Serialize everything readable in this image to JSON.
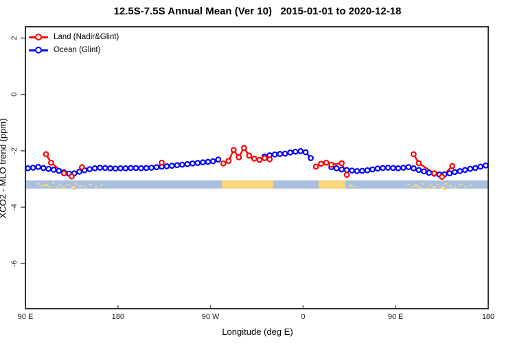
{
  "title": "12.5S-7.5S Annual Mean (Ver 10)   2015-01-01 to 2020-12-18",
  "legend": {
    "items": [
      {
        "label": "Land (Nadir&Glint)",
        "color": "#ff0000"
      },
      {
        "label": "Ocean (Glint)",
        "color": "#0000ff"
      }
    ],
    "position": "top-left"
  },
  "chart_data": {
    "type": "line",
    "title": "12.5S-7.5S Annual Mean (Ver 10)   2015-01-01 to 2020-12-18",
    "xlabel": "Longitude (deg E)",
    "ylabel": "XCO2 - MLO trend (ppm)",
    "grid": false,
    "legend_position": "top-left",
    "xlim": [
      90,
      540
    ],
    "ylim": [
      -7.6,
      2.4
    ],
    "x_ticks": [
      {
        "deg": 90,
        "label": "90 E"
      },
      {
        "deg": 180,
        "label": "180"
      },
      {
        "deg": 270,
        "label": "90 W"
      },
      {
        "deg": 360,
        "label": "0"
      },
      {
        "deg": 450,
        "label": "90 E"
      },
      {
        "deg": 540,
        "label": "180"
      }
    ],
    "y_ticks": [
      2,
      0,
      -2,
      -4,
      -6
    ],
    "series": [
      {
        "name": "Ocean (Glint)",
        "color": "#0000ff",
        "marker": "open-circle",
        "points": [
          [
            92.5,
            -2.62
          ],
          [
            97.5,
            -2.6
          ],
          [
            102.5,
            -2.57
          ],
          [
            107.5,
            -2.61
          ],
          [
            112.5,
            -2.64
          ],
          [
            117.5,
            -2.67
          ],
          [
            122.5,
            -2.71
          ],
          [
            127.5,
            -2.76
          ],
          [
            132.5,
            -2.81
          ],
          [
            137.5,
            -2.8
          ],
          [
            142.5,
            -2.74
          ],
          [
            147.5,
            -2.69
          ],
          [
            152.5,
            -2.65
          ],
          [
            157.5,
            -2.62
          ],
          [
            162.5,
            -2.6
          ],
          [
            167.5,
            -2.61
          ],
          [
            172.5,
            -2.62
          ],
          [
            177.5,
            -2.63
          ],
          [
            182.5,
            -2.62
          ],
          [
            187.5,
            -2.62
          ],
          [
            192.5,
            -2.61
          ],
          [
            197.5,
            -2.61
          ],
          [
            202.5,
            -2.62
          ],
          [
            207.5,
            -2.61
          ],
          [
            212.5,
            -2.6
          ],
          [
            217.5,
            -2.58
          ],
          [
            222.5,
            -2.56
          ],
          [
            227.5,
            -2.55
          ],
          [
            232.5,
            -2.53
          ],
          [
            237.5,
            -2.51
          ],
          [
            242.5,
            -2.49
          ],
          [
            247.5,
            -2.47
          ],
          [
            252.5,
            -2.45
          ],
          [
            257.5,
            -2.43
          ],
          [
            262.5,
            -2.41
          ],
          [
            267.5,
            -2.39
          ],
          [
            272.5,
            -2.37
          ],
          [
            277.5,
            -2.31
          ],
          [
            282.5,
            null
          ],
          [
            287.5,
            null
          ],
          [
            292.5,
            null
          ],
          [
            297.5,
            null
          ],
          [
            302.5,
            null
          ],
          [
            307.5,
            null
          ],
          [
            312.5,
            null
          ],
          [
            317.5,
            null
          ],
          [
            322.5,
            -2.2
          ],
          [
            327.5,
            -2.16
          ],
          [
            332.5,
            -2.13
          ],
          [
            337.5,
            -2.11
          ],
          [
            342.5,
            -2.1
          ],
          [
            347.5,
            -2.06
          ],
          [
            352.5,
            -2.03
          ],
          [
            357.5,
            -2.01
          ],
          [
            362.5,
            -2.05
          ],
          [
            367.5,
            -2.26
          ],
          [
            372.5,
            null
          ],
          [
            377.5,
            null
          ],
          [
            382.5,
            null
          ],
          [
            387.5,
            -2.58
          ],
          [
            392.5,
            -2.62
          ],
          [
            397.5,
            -2.66
          ],
          [
            402.5,
            -2.68
          ],
          [
            407.5,
            -2.7
          ],
          [
            412.5,
            -2.72
          ],
          [
            417.5,
            -2.71
          ],
          [
            422.5,
            -2.69
          ],
          [
            427.5,
            -2.66
          ],
          [
            432.5,
            -2.63
          ],
          [
            437.5,
            -2.61
          ],
          [
            442.5,
            -2.6
          ],
          [
            447.5,
            -2.61
          ],
          [
            452.5,
            -2.62
          ],
          [
            457.5,
            -2.6
          ],
          [
            462.5,
            -2.58
          ],
          [
            467.5,
            -2.62
          ],
          [
            472.5,
            -2.68
          ],
          [
            477.5,
            -2.73
          ],
          [
            482.5,
            -2.78
          ],
          [
            487.5,
            -2.81
          ],
          [
            492.5,
            -2.84
          ],
          [
            497.5,
            -2.83
          ],
          [
            502.5,
            -2.8
          ],
          [
            507.5,
            -2.75
          ],
          [
            512.5,
            -2.72
          ],
          [
            517.5,
            -2.68
          ],
          [
            522.5,
            -2.64
          ],
          [
            527.5,
            -2.61
          ],
          [
            532.5,
            -2.56
          ],
          [
            537.5,
            -2.52
          ]
        ]
      },
      {
        "name": "Land (Nadir&Glint)",
        "color": "#ff0000",
        "marker": "open-circle",
        "points": [
          [
            110,
            -2.12
          ],
          [
            115,
            -2.42
          ],
          [
            127.5,
            -2.8
          ],
          [
            135,
            -2.91
          ],
          [
            145,
            -2.58
          ],
          [
            222.5,
            -2.42
          ],
          [
            282.5,
            -2.45
          ],
          [
            287.5,
            -2.36
          ],
          [
            292.5,
            -1.97
          ],
          [
            297.5,
            -2.23
          ],
          [
            302.5,
            -1.9
          ],
          [
            307.5,
            -2.17
          ],
          [
            312.5,
            -2.28
          ],
          [
            317.5,
            -2.32
          ],
          [
            322.5,
            -2.26
          ],
          [
            327.5,
            -2.3
          ],
          [
            372.5,
            -2.56
          ],
          [
            377.5,
            -2.46
          ],
          [
            382.5,
            -2.42
          ],
          [
            387.5,
            -2.49
          ],
          [
            397.5,
            -2.44
          ],
          [
            402.5,
            -2.85
          ],
          [
            467.5,
            -2.12
          ],
          [
            472.5,
            -2.44
          ],
          [
            487.5,
            -2.8
          ],
          [
            495,
            -2.92
          ],
          [
            505,
            -2.54
          ]
        ]
      }
    ],
    "map_strip": {
      "description": "land/ocean map band along latitude",
      "ocean_color": "#a9c1df",
      "land_color": "#fad57e",
      "top_value": -3.05,
      "height_value": 0.29,
      "land_segments": [
        [
          281,
          331
        ],
        [
          375,
          401
        ]
      ],
      "speckles": [
        [
          101,
          3,
          4,
          2
        ],
        [
          105,
          2,
          7,
          2
        ],
        [
          108,
          4,
          5,
          3
        ],
        [
          112,
          3,
          8,
          2
        ],
        [
          116,
          2,
          3,
          2
        ],
        [
          119,
          3,
          9,
          2
        ],
        [
          123,
          2,
          6,
          2
        ],
        [
          126,
          3,
          10,
          3
        ],
        [
          130,
          2,
          5,
          2
        ],
        [
          134,
          4,
          8,
          3
        ],
        [
          136,
          3,
          12,
          2
        ],
        [
          138,
          2,
          4,
          2
        ],
        [
          142,
          3,
          7,
          2
        ],
        [
          147,
          2,
          9,
          2
        ],
        [
          152,
          3,
          5,
          2
        ],
        [
          158,
          2,
          8,
          2
        ],
        [
          163,
          2,
          6,
          2
        ],
        [
          405,
          3,
          6,
          3
        ],
        [
          409,
          2,
          8,
          2
        ],
        [
          461,
          3,
          5,
          2
        ],
        [
          465,
          2,
          8,
          2
        ],
        [
          468,
          4,
          6,
          3
        ],
        [
          472,
          3,
          9,
          2
        ],
        [
          476,
          2,
          4,
          2
        ],
        [
          479,
          3,
          10,
          3
        ],
        [
          483,
          2,
          6,
          2
        ],
        [
          486,
          3,
          8,
          3
        ],
        [
          490,
          2,
          5,
          2
        ],
        [
          494,
          4,
          9,
          3
        ],
        [
          496,
          3,
          12,
          2
        ],
        [
          498,
          2,
          4,
          2
        ],
        [
          502,
          3,
          7,
          2
        ],
        [
          507,
          2,
          9,
          2
        ],
        [
          512,
          3,
          5,
          2
        ],
        [
          517,
          2,
          8,
          2
        ],
        [
          522,
          2,
          6,
          2
        ]
      ]
    },
    "axis_color": "#333333",
    "tick_color": "#555555"
  }
}
